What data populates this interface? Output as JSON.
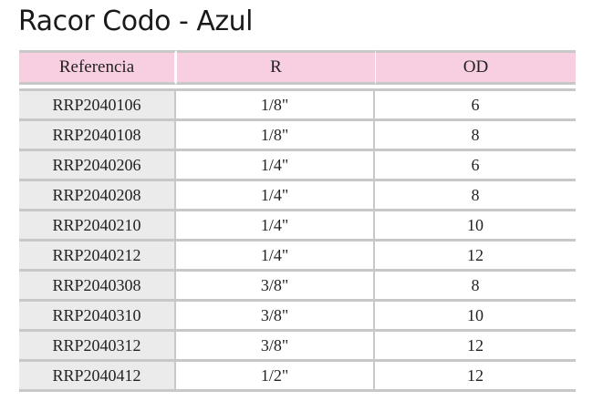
{
  "title": "Racor Codo - Azul",
  "table": {
    "headers": [
      "Referencia",
      "R",
      "OD"
    ],
    "rows": [
      [
        "RRP2040106",
        "1/8\"",
        "6"
      ],
      [
        "RRP2040108",
        "1/8\"",
        "8"
      ],
      [
        "RRP2040206",
        "1/4\"",
        "6"
      ],
      [
        "RRP2040208",
        "1/4\"",
        "8"
      ],
      [
        "RRP2040210",
        "1/4\"",
        "10"
      ],
      [
        "RRP2040212",
        "1/4\"",
        "12"
      ],
      [
        "RRP2040308",
        "3/8\"",
        "8"
      ],
      [
        "RRP2040310",
        "3/8\"",
        "10"
      ],
      [
        "RRP2040312",
        "3/8\"",
        "12"
      ],
      [
        "RRP2040412",
        "1/2\"",
        "12"
      ]
    ]
  },
  "colors": {
    "header_background": "#f7cfe1",
    "reference_column_background": "#ebebeb",
    "rule_color": "#c8c8c8"
  }
}
